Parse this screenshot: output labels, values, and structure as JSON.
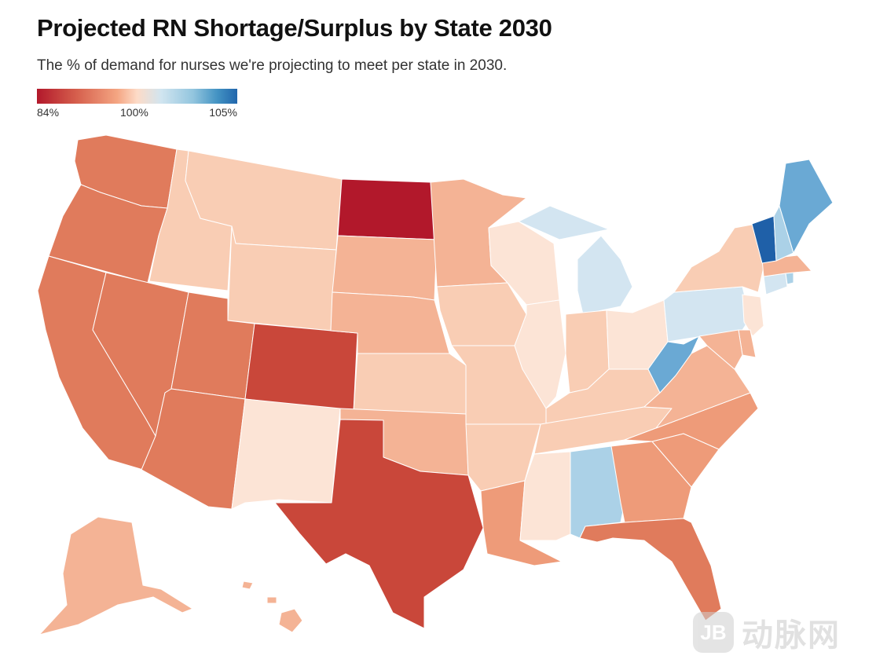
{
  "header": {
    "title": "Projected RN Shortage/Surplus by State 2030",
    "subtitle": "The % of demand for nurses we're projecting to meet per state in 2030."
  },
  "legend": {
    "min_label": "84%",
    "mid_label": "100%",
    "max_label": "105%",
    "min_value": 84,
    "mid_value": 100,
    "max_value": 105
  },
  "colors": {
    "deep_red": "#b2182b",
    "dark_red": "#c9473a",
    "red_orange": "#e07b5c",
    "salmon": "#ee9b79",
    "light_salmon": "#f4b395",
    "peach": "#f9cdb4",
    "pale_peach": "#fce4d6",
    "pale_blue": "#d3e5f1",
    "light_blue": "#abd1e7",
    "mid_blue": "#6aa9d4",
    "dark_blue": "#1f60a8"
  },
  "states": [
    {
      "id": "WA",
      "color": "red_orange"
    },
    {
      "id": "OR",
      "color": "red_orange"
    },
    {
      "id": "CA",
      "color": "red_orange"
    },
    {
      "id": "NV",
      "color": "red_orange"
    },
    {
      "id": "ID",
      "color": "peach"
    },
    {
      "id": "MT",
      "color": "peach"
    },
    {
      "id": "WY",
      "color": "peach"
    },
    {
      "id": "UT",
      "color": "red_orange"
    },
    {
      "id": "AZ",
      "color": "red_orange"
    },
    {
      "id": "CO",
      "color": "dark_red"
    },
    {
      "id": "NM",
      "color": "pale_peach"
    },
    {
      "id": "ND",
      "color": "deep_red"
    },
    {
      "id": "SD",
      "color": "light_salmon"
    },
    {
      "id": "NE",
      "color": "light_salmon"
    },
    {
      "id": "KS",
      "color": "peach"
    },
    {
      "id": "OK",
      "color": "light_salmon"
    },
    {
      "id": "TX",
      "color": "dark_red"
    },
    {
      "id": "MN",
      "color": "light_salmon"
    },
    {
      "id": "IA",
      "color": "peach"
    },
    {
      "id": "MO",
      "color": "peach"
    },
    {
      "id": "AR",
      "color": "peach"
    },
    {
      "id": "LA",
      "color": "salmon"
    },
    {
      "id": "WI",
      "color": "pale_peach"
    },
    {
      "id": "IL",
      "color": "pale_peach"
    },
    {
      "id": "MI",
      "color": "pale_blue"
    },
    {
      "id": "IN",
      "color": "peach"
    },
    {
      "id": "OH",
      "color": "pale_peach"
    },
    {
      "id": "KY",
      "color": "peach"
    },
    {
      "id": "TN",
      "color": "peach"
    },
    {
      "id": "MS",
      "color": "pale_peach"
    },
    {
      "id": "AL",
      "color": "light_blue"
    },
    {
      "id": "GA",
      "color": "salmon"
    },
    {
      "id": "FL",
      "color": "red_orange"
    },
    {
      "id": "SC",
      "color": "salmon"
    },
    {
      "id": "NC",
      "color": "salmon"
    },
    {
      "id": "VA",
      "color": "light_salmon"
    },
    {
      "id": "WV",
      "color": "mid_blue"
    },
    {
      "id": "PA",
      "color": "pale_blue"
    },
    {
      "id": "NY",
      "color": "peach"
    },
    {
      "id": "NJ",
      "color": "pale_peach"
    },
    {
      "id": "DE",
      "color": "light_salmon"
    },
    {
      "id": "MD",
      "color": "light_salmon"
    },
    {
      "id": "CT",
      "color": "pale_blue"
    },
    {
      "id": "RI",
      "color": "light_blue"
    },
    {
      "id": "MA",
      "color": "light_salmon"
    },
    {
      "id": "VT",
      "color": "dark_blue"
    },
    {
      "id": "NH",
      "color": "light_blue"
    },
    {
      "id": "ME",
      "color": "mid_blue"
    },
    {
      "id": "AK",
      "color": "light_salmon"
    },
    {
      "id": "HI",
      "color": "light_salmon"
    }
  ],
  "watermark": {
    "logo_text": "JB",
    "text": "动脉网"
  }
}
